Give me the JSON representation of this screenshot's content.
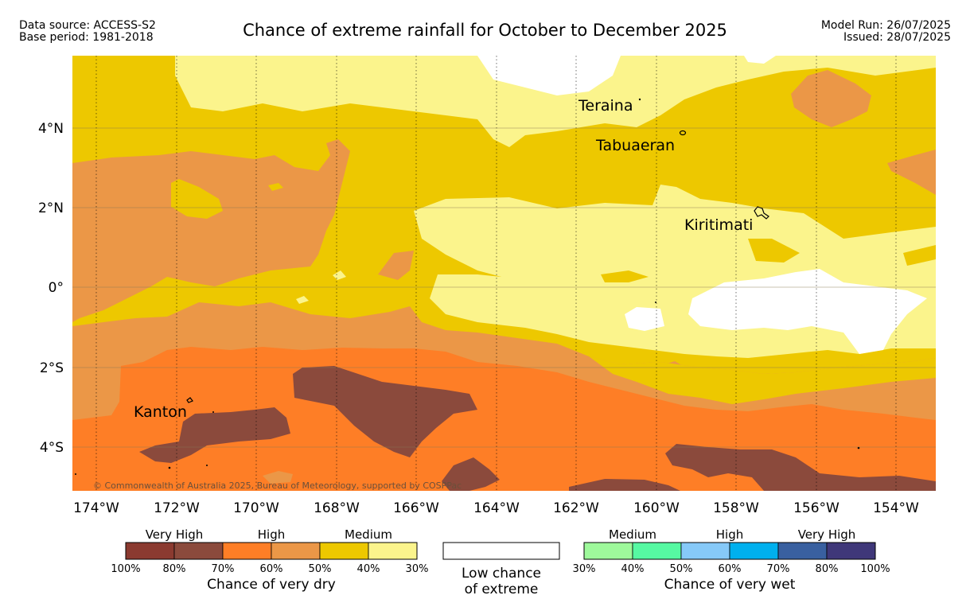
{
  "header": {
    "data_source": "Data source: ACCESS-S2",
    "base_period": "Base period: 1981-2018",
    "title": "Chance of extreme rainfall for October to December 2025",
    "model_run": "Model Run: 26/07/2025",
    "issued": "Issued: 28/07/2025"
  },
  "map": {
    "lon_labels": [
      "174°W",
      "172°W",
      "170°W",
      "168°W",
      "166°W",
      "164°W",
      "162°W",
      "160°W",
      "158°W",
      "156°W",
      "154°W"
    ],
    "lat_labels": [
      "4°N",
      "2°N",
      "0°",
      "2°S",
      "4°S"
    ],
    "places": [
      "Teraina",
      "Tabuaeran",
      "Kiritimati",
      "Kanton"
    ],
    "copyright": "© Commonwealth of Australia 2025, Bureau of Meteorology, supported by COSPPac"
  },
  "legend": {
    "dry": {
      "headers": [
        "Very High",
        "High",
        "Medium"
      ],
      "ticks": [
        "100%",
        "80%",
        "70%",
        "60%",
        "50%",
        "40%",
        "30%"
      ],
      "colors": [
        "#8b3a30",
        "#8b4a3c",
        "#fe7e26",
        "#eb9747",
        "#edc800",
        "#fbf48c"
      ],
      "caption": "Chance of very dry"
    },
    "low": {
      "line1": "Low chance",
      "line2": "of extreme"
    },
    "wet": {
      "headers": [
        "Medium",
        "High",
        "Very High"
      ],
      "ticks": [
        "30%",
        "40%",
        "50%",
        "60%",
        "70%",
        "80%",
        "100%"
      ],
      "colors": [
        "#9ef99b",
        "#56f9a2",
        "#86c9f8",
        "#00b0ee",
        "#3960a0",
        "#3f3779"
      ],
      "caption": "Chance of very wet"
    }
  }
}
